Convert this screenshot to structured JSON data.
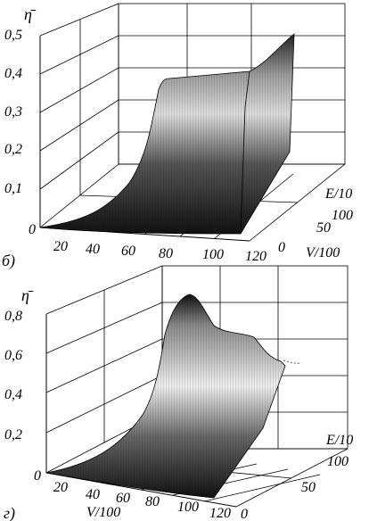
{
  "chart_data": [
    {
      "type": "surface",
      "panel_label": "б)",
      "zlabel": "η̄",
      "xlabel": "V/100",
      "ylabel": "E/10",
      "z_ticks": [
        "0",
        "0,1",
        "0,2",
        "0,3",
        "0,4",
        "0,5"
      ],
      "x_ticks": [
        "0",
        "20",
        "40",
        "60",
        "80",
        "100",
        "120"
      ],
      "y_ticks": [
        "0",
        "50",
        "100"
      ],
      "zlim": [
        0,
        0.5
      ],
      "xlim": [
        0,
        120
      ],
      "ylim": [
        0,
        100
      ],
      "surface_profile_z_vs_x": [
        {
          "x": 0,
          "z": 0.0
        },
        {
          "x": 20,
          "z": 0.01
        },
        {
          "x": 40,
          "z": 0.05
        },
        {
          "x": 55,
          "z": 0.15
        },
        {
          "x": 65,
          "z": 0.28
        },
        {
          "x": 75,
          "z": 0.38
        },
        {
          "x": 90,
          "z": 0.41
        },
        {
          "x": 105,
          "z": 0.43
        },
        {
          "x": 120,
          "z": 0.46
        }
      ]
    },
    {
      "type": "surface",
      "panel_label": "г)",
      "zlabel": "η̄",
      "xlabel": "V/100",
      "ylabel": "E/10",
      "z_ticks": [
        "0",
        "0,2",
        "0,4",
        "0,6",
        "0,8"
      ],
      "x_ticks": [
        "0",
        "20",
        "40",
        "60",
        "80",
        "100",
        "120"
      ],
      "y_ticks": [
        "0",
        "50",
        "100"
      ],
      "zlim": [
        0,
        0.8
      ],
      "xlim": [
        0,
        120
      ],
      "ylim": [
        0,
        100
      ],
      "surface_profile_z_vs_x": [
        {
          "x": 0,
          "z": 0.0
        },
        {
          "x": 20,
          "z": 0.02
        },
        {
          "x": 40,
          "z": 0.1
        },
        {
          "x": 55,
          "z": 0.3
        },
        {
          "x": 65,
          "z": 0.55
        },
        {
          "x": 75,
          "z": 0.75
        },
        {
          "x": 85,
          "z": 0.82
        },
        {
          "x": 95,
          "z": 0.7
        },
        {
          "x": 105,
          "z": 0.62
        },
        {
          "x": 115,
          "z": 0.6
        },
        {
          "x": 120,
          "z": 0.55
        }
      ]
    }
  ]
}
